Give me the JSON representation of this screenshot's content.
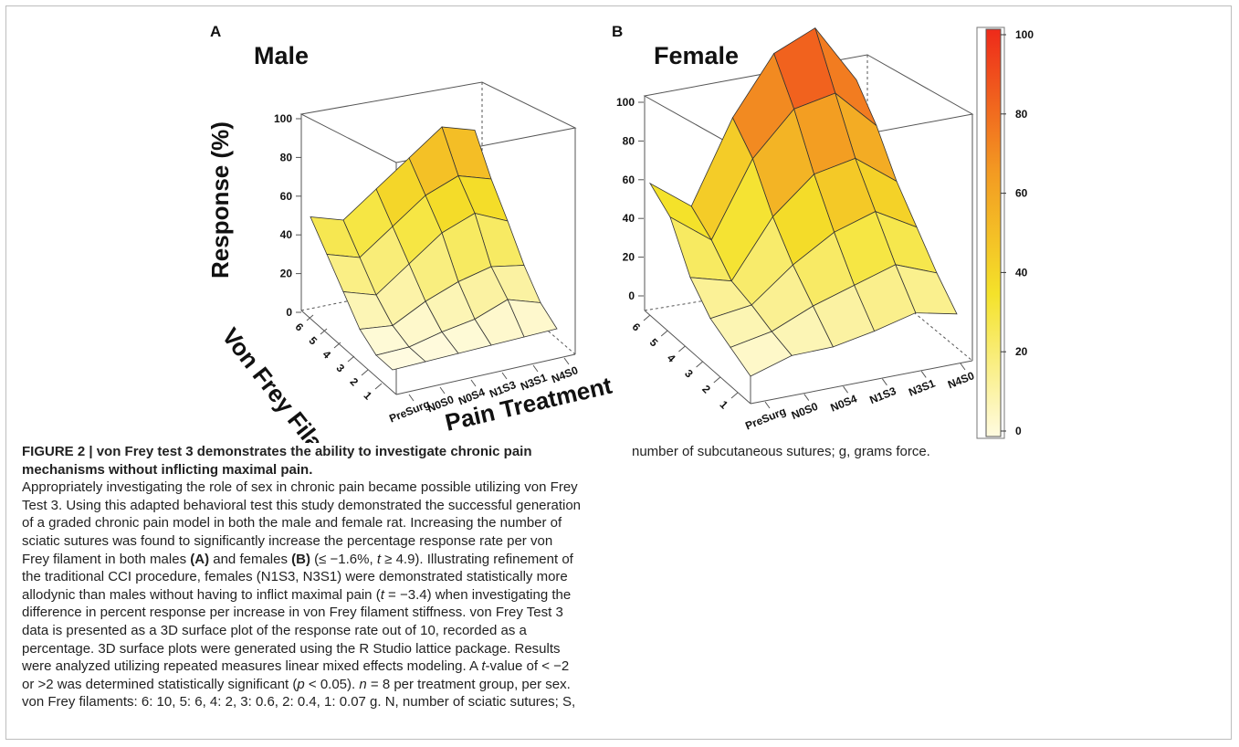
{
  "colors": {
    "low": "#fffbe0",
    "mid": "#f2e22e",
    "high": "#f08a1e",
    "max": "#ee2a1a"
  },
  "chart_data": [
    {
      "type": "surface",
      "panel": "A",
      "title": "Male",
      "xlabel": "Pain Treatment",
      "ylabel": "Von Frey Filament",
      "zlabel": "Response (%)",
      "x_categories": [
        "PreSurg",
        "N0S0",
        "N0S4",
        "N1S3",
        "N3S1",
        "N4S0"
      ],
      "y_categories": [
        "1",
        "2",
        "3",
        "4",
        "5",
        "6"
      ],
      "z_ticks": [
        "0",
        "20",
        "40",
        "60",
        "80",
        "100"
      ],
      "zlim": [
        0,
        100
      ],
      "z_values": [
        [
          0,
          0,
          0,
          0,
          0,
          0
        ],
        [
          0,
          0,
          3,
          5,
          10,
          5
        ],
        [
          5,
          3,
          10,
          15,
          18,
          15
        ],
        [
          15,
          10,
          20,
          30,
          35,
          28
        ],
        [
          25,
          20,
          30,
          40,
          45,
          40
        ],
        [
          35,
          30,
          40,
          50,
          60,
          55
        ]
      ]
    },
    {
      "type": "surface",
      "panel": "B",
      "title": "Female",
      "xlabel": "",
      "ylabel": "",
      "zlabel": "",
      "x_categories": [
        "PreSurg",
        "N0S0",
        "N0S4",
        "N1S3",
        "N3S1",
        "N4S0"
      ],
      "y_categories": [
        "1",
        "2",
        "3",
        "4",
        "5",
        "6"
      ],
      "z_ticks": [
        "0",
        "20",
        "40",
        "60",
        "80",
        "100"
      ],
      "zlim": [
        0,
        100
      ],
      "z_values": [
        [
          0,
          5,
          5,
          8,
          12,
          8
        ],
        [
          5,
          8,
          15,
          20,
          25,
          18
        ],
        [
          10,
          12,
          25,
          35,
          40,
          30
        ],
        [
          20,
          15,
          38,
          52,
          55,
          42
        ],
        [
          38,
          25,
          55,
          72,
          75,
          58
        ],
        [
          45,
          32,
          65,
          88,
          95,
          70
        ]
      ]
    }
  ],
  "colorbar": {
    "ticks": [
      "0",
      "20",
      "40",
      "60",
      "80",
      "100"
    ],
    "range": [
      0,
      100
    ]
  },
  "caption": {
    "title": "FIGURE 2 | von Frey test 3 demonstrates the ability to investigate chronic pain mechanisms without inflicting maximal pain.",
    "p1": "Appropriately investigating the role of sex in chronic pain became possible utilizing von Frey Test 3. Using this adapted behavioral test this study demonstrated the successful generation of a graded chronic pain model in both the male and female rat. Increasing the number of sciatic sutures was found to significantly increase the percentage response rate per von Frey filament in both males",
    "ref_a": "(A)",
    "p2": "and females",
    "ref_b": "(B)",
    "p3": "(≤ −1.6%,",
    "t_sym": "t",
    "p4": "≥ 4.9). Illustrating refinement of the traditional CCI procedure, females (N1S3, N3S1) were demonstrated statistically more allodynic than males without having to inflict maximal pain (",
    "p5": "= −3.4) when investigating the difference in percent response per increase in von Frey filament stiffness. von Frey Test 3 data is presented as a 3D surface plot of the response rate out of 10, recorded as a percentage. 3D surface plots were generated using the R Studio lattice package. Results were analyzed utilizing repeated measures linear mixed effects modeling. A",
    "p6": "-value of < −2 or >2 was determined statistically significant (",
    "p_sym": "p",
    "p7": "< 0.05).",
    "n_sym": "n",
    "p8": "= 8 per treatment group, per sex. von Frey filaments: 6: 10, 5: 6, 4: 2, 3: 0.6, 2: 0.4, 1: 0.07 g. N, number of sciatic sutures; S, number of subcutaneous sutures; g, grams force."
  }
}
